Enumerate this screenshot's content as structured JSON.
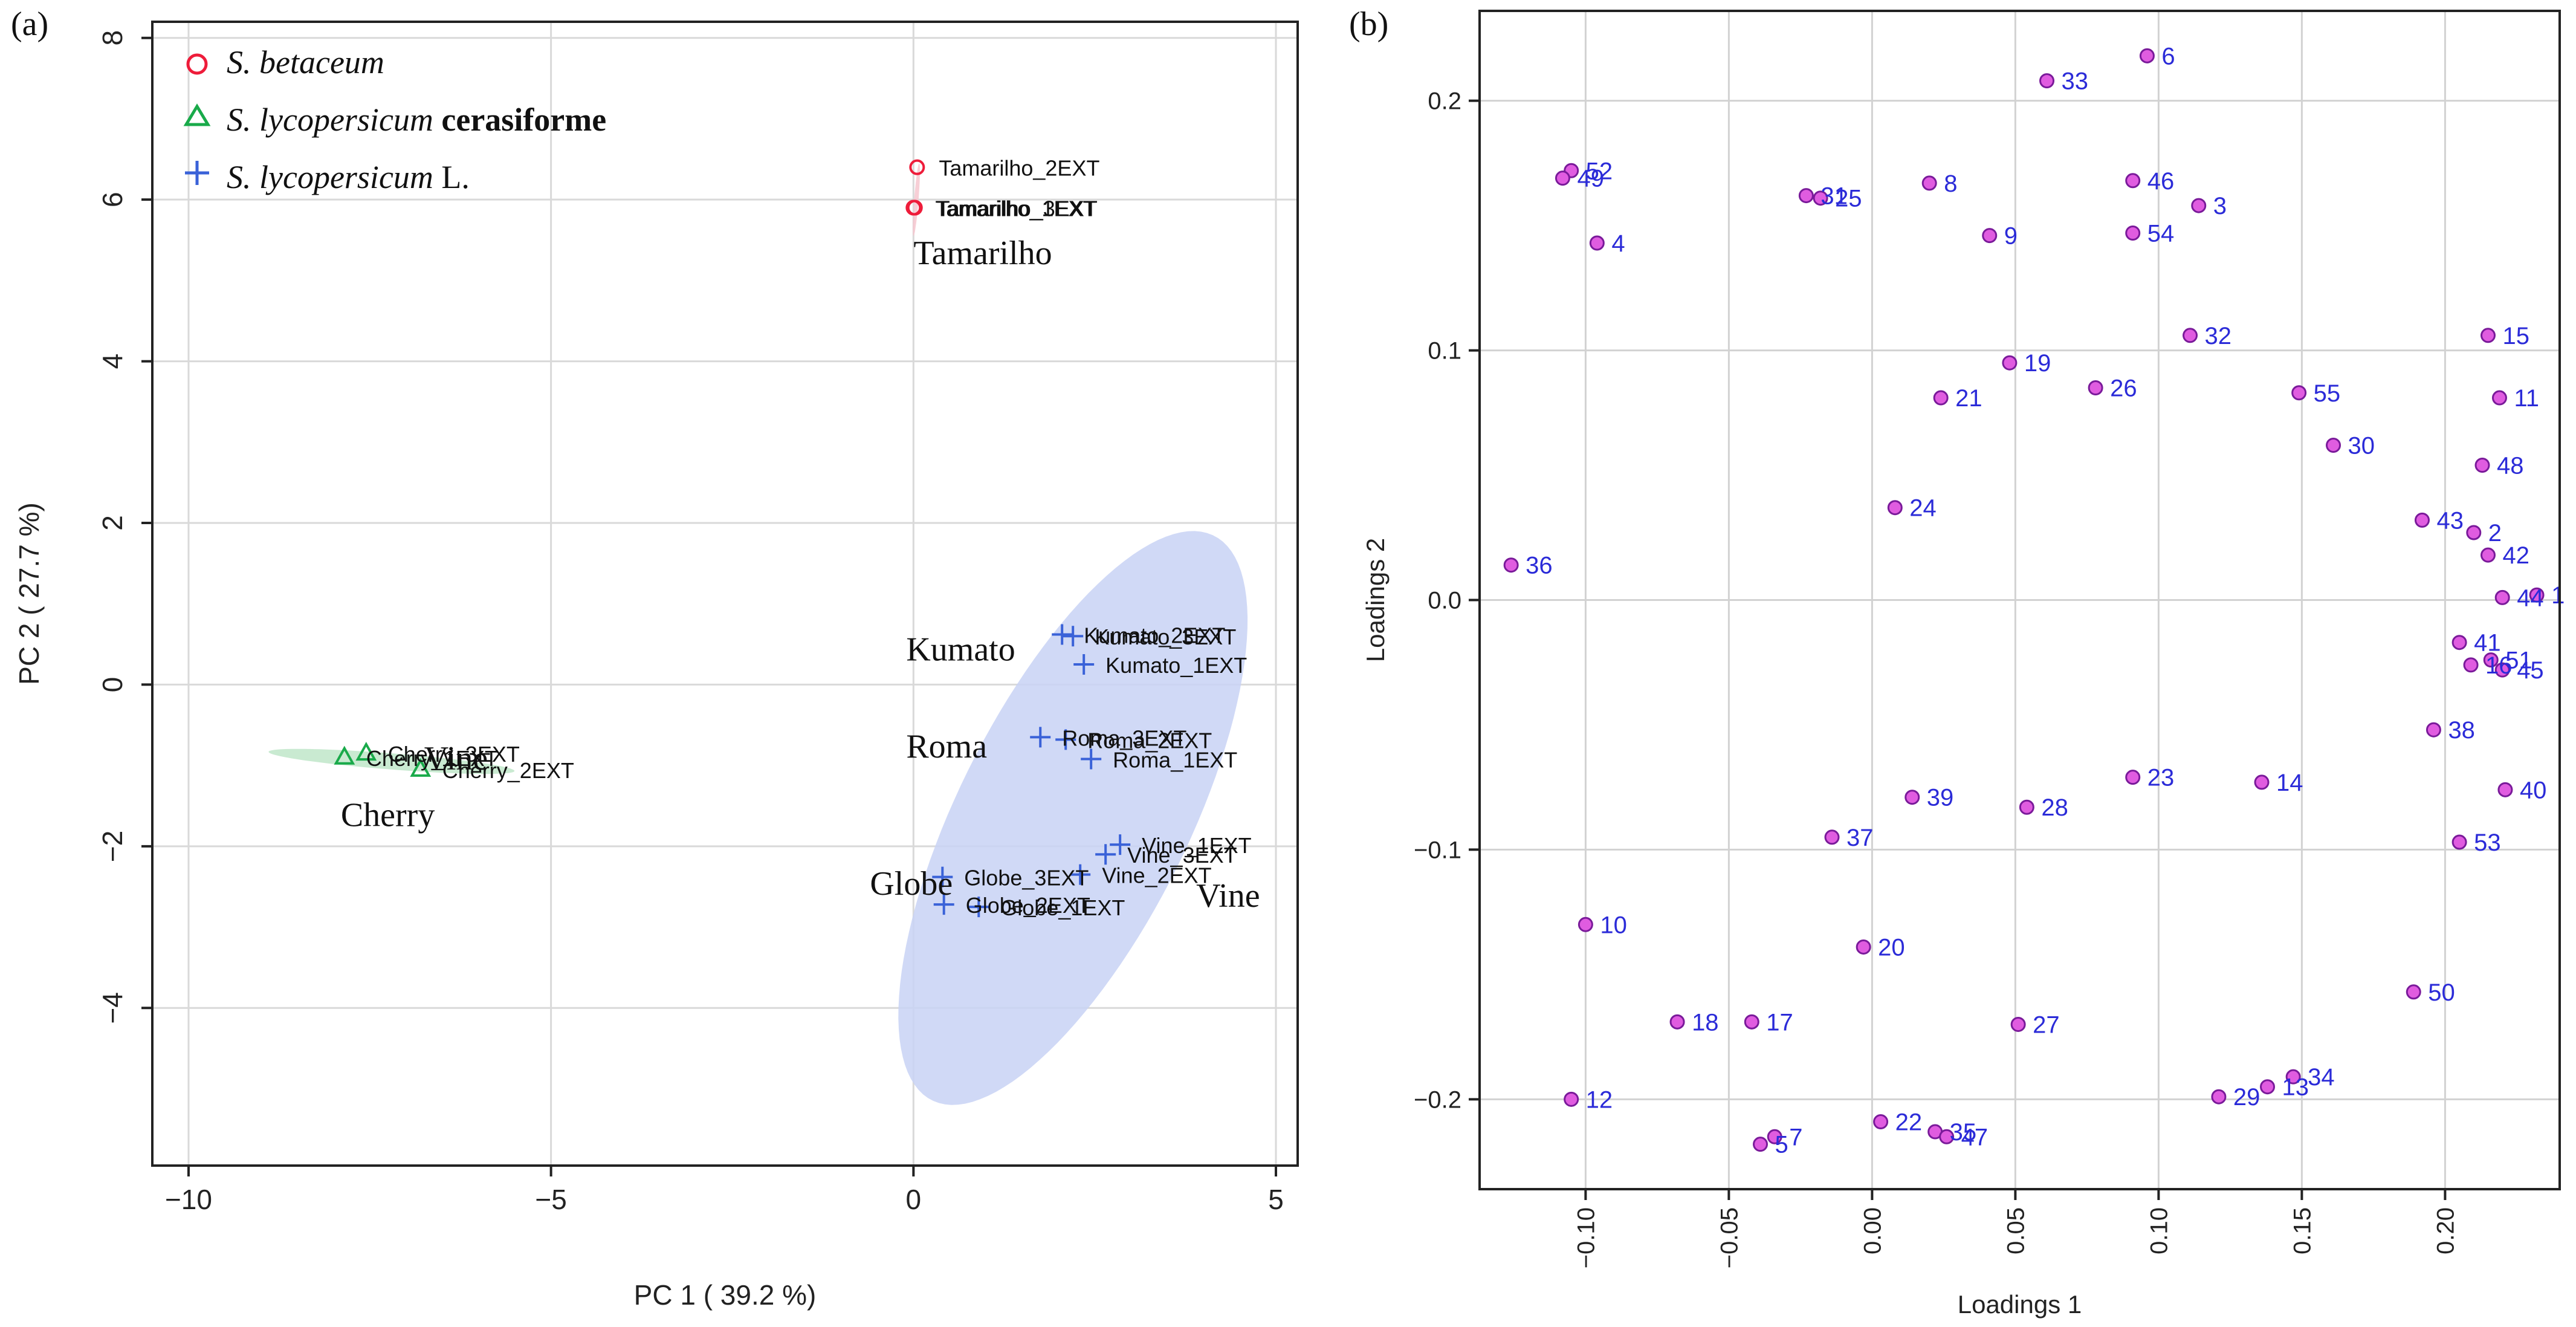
{
  "chart_data": [
    {
      "type": "scatter",
      "panel_label": "(a)",
      "xlabel": "PC 1 ( 39.2 %)",
      "ylabel": "PC 2 ( 27.7 %)",
      "xlim": [
        -10.5,
        5.3
      ],
      "ylim": [
        -5.95,
        8.2
      ],
      "xticks": [
        -10,
        -5,
        0,
        5
      ],
      "yticks": [
        -4,
        -2,
        0,
        2,
        4,
        6,
        8
      ],
      "xtick_labels": [
        "−10",
        "−5",
        "0",
        "5"
      ],
      "ytick_labels": [
        "−4",
        "−2",
        "0",
        "2",
        "4",
        "6",
        "8"
      ],
      "grid": true,
      "legend_position": "top-left",
      "legend": [
        {
          "species": "S. betaceum",
          "suffix": "",
          "marker": "circle",
          "color": "#ee1c3a"
        },
        {
          "species": "S. lycopersicum",
          "suffix": " cerasiforme",
          "marker": "triangle",
          "color": "#19aa4a"
        },
        {
          "species": "S. lycopersicum",
          "suffix": " L.",
          "marker": "plus",
          "color": "#3a62d8"
        }
      ],
      "series": [
        {
          "name": "S. betaceum",
          "marker": "circle",
          "color": "#ee1c3a",
          "points": [
            {
              "x": 0.05,
              "y": 6.4,
              "label": "Tamarilho_2EXT"
            },
            {
              "x": 0.0,
              "y": 5.9,
              "label": "Tamarilho_1EXT"
            },
            {
              "x": 0.02,
              "y": 5.9,
              "label": "Tamarilho_3EXT"
            }
          ]
        },
        {
          "name": "S. lycopersicum cerasiforme",
          "marker": "triangle",
          "color": "#19aa4a",
          "points": [
            {
              "x": -7.55,
              "y": -0.85,
              "label": "Cherry_3EXT"
            },
            {
              "x": -7.85,
              "y": -0.9,
              "label": "Cherry_1EXT"
            },
            {
              "x": -6.8,
              "y": -1.05,
              "label": "Cherry_2EXT"
            }
          ]
        },
        {
          "name": "S. lycopersicum L.",
          "marker": "plus",
          "color": "#3a62d8",
          "points": [
            {
              "x": 2.05,
              "y": 0.62,
              "label": "Kumato_2EXT"
            },
            {
              "x": 2.2,
              "y": 0.6,
              "label": "Kumato_3EXT"
            },
            {
              "x": 2.35,
              "y": 0.25,
              "label": "Kumato_1EXT"
            },
            {
              "x": 1.75,
              "y": -0.65,
              "label": "Roma_3EXT"
            },
            {
              "x": 2.1,
              "y": -0.68,
              "label": "Roma_2EXT"
            },
            {
              "x": 2.45,
              "y": -0.92,
              "label": "Roma_1EXT"
            },
            {
              "x": 2.85,
              "y": -1.98,
              "label": "Vine_1EXT"
            },
            {
              "x": 2.65,
              "y": -2.1,
              "label": "Vine_3EXT"
            },
            {
              "x": 2.3,
              "y": -2.35,
              "label": "Vine_2EXT"
            },
            {
              "x": 0.4,
              "y": -2.38,
              "label": "Globe_3EXT"
            },
            {
              "x": 0.42,
              "y": -2.72,
              "label": "Globe_2EXT"
            },
            {
              "x": 0.9,
              "y": -2.75,
              "label": "Globe_1EXT"
            }
          ]
        }
      ],
      "group_labels": [
        {
          "text": "Tamarilho",
          "x": 0.0,
          "y": 5.2
        },
        {
          "text": "Kumato",
          "x": -0.1,
          "y": 0.3
        },
        {
          "text": "Roma",
          "x": -0.1,
          "y": -0.9
        },
        {
          "text": "Cherry",
          "x": -7.9,
          "y": -1.75
        },
        {
          "text": "Globe",
          "x": -0.6,
          "y": -2.6
        },
        {
          "text": "Vine",
          "x": 3.9,
          "y": -2.75
        },
        {
          "text": "Vine",
          "x": -6.75,
          "y": -1.05
        }
      ],
      "ellipses": [
        {
          "name": "S. lycopersicum L. region",
          "cx": 2.2,
          "cy": -1.65,
          "rx": 4.0,
          "ry": 1.55,
          "angle_deg": 60,
          "color": "#c8d2f4"
        },
        {
          "name": "S. lycopersicum cerasiforme region",
          "cx": -7.2,
          "cy": -0.95,
          "rx": 1.7,
          "ry": 0.1,
          "angle_deg": -4,
          "color": "#bfe6c9"
        },
        {
          "name": "S. betaceum region",
          "cx": 0.04,
          "cy": 6.0,
          "rx": 0.45,
          "ry": 0.03,
          "angle_deg": 85,
          "color": "#f6c7cf"
        }
      ]
    },
    {
      "type": "scatter",
      "panel_label": "(b)",
      "xlabel": "Loadings 1",
      "ylabel": "Loadings 2",
      "xlim": [
        -0.137,
        0.24
      ],
      "ylim": [
        -0.236,
        0.236
      ],
      "xticks": [
        -0.1,
        -0.05,
        0.0,
        0.05,
        0.1,
        0.15,
        0.2
      ],
      "yticks": [
        -0.2,
        -0.1,
        0.0,
        0.1,
        0.2
      ],
      "xtick_labels": [
        "−0.10",
        "−0.05",
        "0.00",
        "0.05",
        "0.10",
        "0.15",
        "0.20"
      ],
      "ytick_labels": [
        "−0.2",
        "−0.1",
        "0.0",
        "0.1",
        "0.2"
      ],
      "grid": true,
      "marker_fill": "#e05ce0",
      "marker_stroke": "#7a1a9a",
      "label_color": "#2b2bd8",
      "points": [
        {
          "label": "6",
          "x": 0.096,
          "y": 0.218
        },
        {
          "label": "33",
          "x": 0.061,
          "y": 0.208
        },
        {
          "label": "52",
          "x": -0.105,
          "y": 0.172
        },
        {
          "label": "49",
          "x": -0.108,
          "y": 0.169
        },
        {
          "label": "31",
          "x": -0.023,
          "y": 0.162
        },
        {
          "label": "25",
          "x": -0.018,
          "y": 0.161
        },
        {
          "label": "8",
          "x": 0.02,
          "y": 0.167
        },
        {
          "label": "46",
          "x": 0.091,
          "y": 0.168
        },
        {
          "label": "3",
          "x": 0.114,
          "y": 0.158
        },
        {
          "label": "4",
          "x": -0.096,
          "y": 0.143
        },
        {
          "label": "9",
          "x": 0.041,
          "y": 0.146
        },
        {
          "label": "54",
          "x": 0.091,
          "y": 0.147
        },
        {
          "label": "32",
          "x": 0.111,
          "y": 0.106
        },
        {
          "label": "15",
          "x": 0.215,
          "y": 0.106
        },
        {
          "label": "19",
          "x": 0.048,
          "y": 0.095
        },
        {
          "label": "26",
          "x": 0.078,
          "y": 0.085
        },
        {
          "label": "21",
          "x": 0.024,
          "y": 0.081
        },
        {
          "label": "55",
          "x": 0.149,
          "y": 0.083
        },
        {
          "label": "11",
          "x": 0.219,
          "y": 0.081
        },
        {
          "label": "30",
          "x": 0.161,
          "y": 0.062
        },
        {
          "label": "48",
          "x": 0.213,
          "y": 0.054
        },
        {
          "label": "24",
          "x": 0.008,
          "y": 0.037
        },
        {
          "label": "43",
          "x": 0.192,
          "y": 0.032
        },
        {
          "label": "2",
          "x": 0.21,
          "y": 0.027
        },
        {
          "label": "42",
          "x": 0.215,
          "y": 0.018
        },
        {
          "label": "36",
          "x": -0.126,
          "y": 0.014
        },
        {
          "label": "44",
          "x": 0.22,
          "y": 0.001
        },
        {
          "label": "1",
          "x": 0.232,
          "y": 0.002
        },
        {
          "label": "41",
          "x": 0.205,
          "y": -0.017
        },
        {
          "label": "16",
          "x": 0.209,
          "y": -0.026
        },
        {
          "label": "51",
          "x": 0.216,
          "y": -0.024
        },
        {
          "label": "45",
          "x": 0.22,
          "y": -0.028
        },
        {
          "label": "38",
          "x": 0.196,
          "y": -0.052
        },
        {
          "label": "23",
          "x": 0.091,
          "y": -0.071
        },
        {
          "label": "14",
          "x": 0.136,
          "y": -0.073
        },
        {
          "label": "40",
          "x": 0.221,
          "y": -0.076
        },
        {
          "label": "39",
          "x": 0.014,
          "y": -0.079
        },
        {
          "label": "28",
          "x": 0.054,
          "y": -0.083
        },
        {
          "label": "37",
          "x": -0.014,
          "y": -0.095
        },
        {
          "label": "53",
          "x": 0.205,
          "y": -0.097
        },
        {
          "label": "10",
          "x": -0.1,
          "y": -0.13
        },
        {
          "label": "20",
          "x": -0.003,
          "y": -0.139
        },
        {
          "label": "50",
          "x": 0.189,
          "y": -0.157
        },
        {
          "label": "18",
          "x": -0.068,
          "y": -0.169
        },
        {
          "label": "17",
          "x": -0.042,
          "y": -0.169
        },
        {
          "label": "27",
          "x": 0.051,
          "y": -0.17
        },
        {
          "label": "12",
          "x": -0.105,
          "y": -0.2
        },
        {
          "label": "34",
          "x": 0.147,
          "y": -0.191
        },
        {
          "label": "13",
          "x": 0.138,
          "y": -0.195
        },
        {
          "label": "29",
          "x": 0.121,
          "y": -0.199
        },
        {
          "label": "22",
          "x": 0.003,
          "y": -0.209
        },
        {
          "label": "35",
          "x": 0.022,
          "y": -0.213
        },
        {
          "label": "47",
          "x": 0.026,
          "y": -0.215
        },
        {
          "label": "7",
          "x": -0.034,
          "y": -0.215
        },
        {
          "label": "5",
          "x": -0.039,
          "y": -0.218
        }
      ]
    }
  ]
}
